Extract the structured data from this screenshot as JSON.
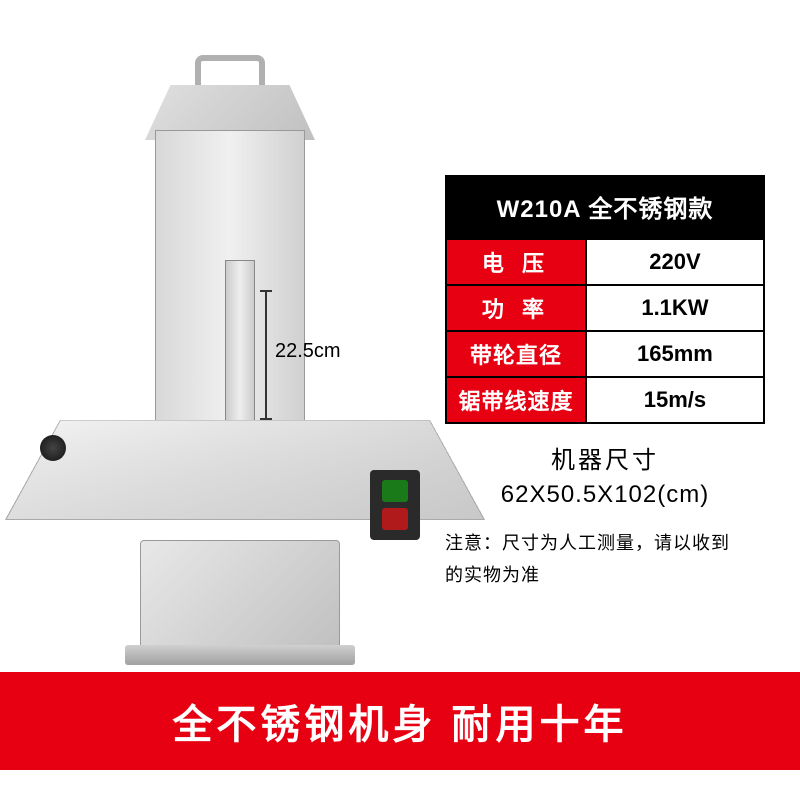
{
  "product": {
    "blade_clearance_label": "22.5cm"
  },
  "spec_header": "W210A 全不锈钢款",
  "spec_rows": [
    {
      "label": "电 压",
      "value": "220V",
      "tight": false
    },
    {
      "label": "功 率",
      "value": "1.1KW",
      "tight": false
    },
    {
      "label": "带轮直径",
      "value": "165mm",
      "tight": true
    },
    {
      "label": "锯带线速度",
      "value": "15m/s",
      "tight": true
    }
  ],
  "dimensions": {
    "title": "机器尺寸",
    "value": "62X50.5X102(cm)"
  },
  "note": {
    "line1": "注意：尺寸为人工测量，请以收到",
    "line2": "的实物为准"
  },
  "banner": "全不锈钢机身 耐用十年",
  "colors": {
    "accent_red": "#e60012",
    "black": "#000000",
    "white": "#ffffff"
  }
}
